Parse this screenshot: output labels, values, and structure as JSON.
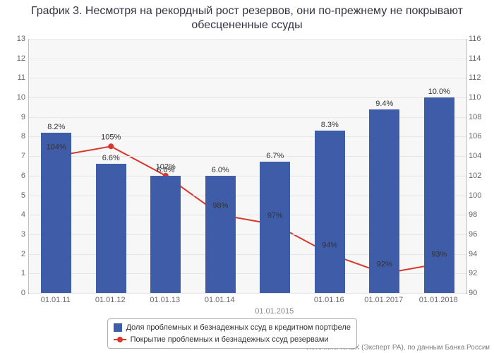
{
  "chart": {
    "type": "bar+line",
    "title": "График 3. Несмотря на рекордный рост резервов, они по-прежнему не покрывают обесцененные ссуды",
    "title_fontsize": 16,
    "title_color": "#333344",
    "background_color": "#ffffff",
    "plot_background_color": "#f7f7f7",
    "grid_color": "#e6e6e6",
    "axis_color": "#c0c0c0",
    "tick_fontsize": 11,
    "tick_color": "#666666",
    "label_fontsize": 11,
    "label_color": "#333333",
    "categories": [
      "01.01.11",
      "01.01.12",
      "01.01.13",
      "01.01.14",
      "01.01.15",
      "01.01.16",
      "01.01.17",
      "01.01.18"
    ],
    "visible_xticks": [
      "01.01.11",
      "01.01.12",
      "01.01.13",
      "01.01.14",
      "01.01.16",
      "01.01.2017",
      "01.01.2018"
    ],
    "xaxis_title": "01.01.2015",
    "left_axis": {
      "min": 0,
      "max": 13,
      "step": 1
    },
    "right_axis": {
      "min": 90,
      "max": 116,
      "step": 2
    },
    "bars": {
      "values": [
        8.2,
        6.6,
        6.0,
        6.0,
        6.7,
        8.3,
        9.4,
        10.0
      ],
      "labels": [
        "8.2%",
        "6.6%",
        "6.0%",
        "6.0%",
        "6.7%",
        "8.3%",
        "9.4%",
        "10.0%"
      ],
      "color": "#3f5ca9",
      "width_frac": 0.55
    },
    "line": {
      "values": [
        104,
        105,
        102,
        98,
        97,
        94,
        92,
        93
      ],
      "labels": [
        "104%",
        "105%",
        "102%",
        "98%",
        "97%",
        "94%",
        "92%",
        "93%"
      ],
      "color": "#d9372c",
      "line_width": 2,
      "marker_radius": 4
    },
    "legend": {
      "bar_label": "Доля проблемных и безнадежных ссуд в кредитном портфеле",
      "line_label": "Покрытие проблемных и безнадежных ссуд резервами"
    },
    "source": "Источник: RAEX (Эксперт РА), по данным Банка России"
  }
}
